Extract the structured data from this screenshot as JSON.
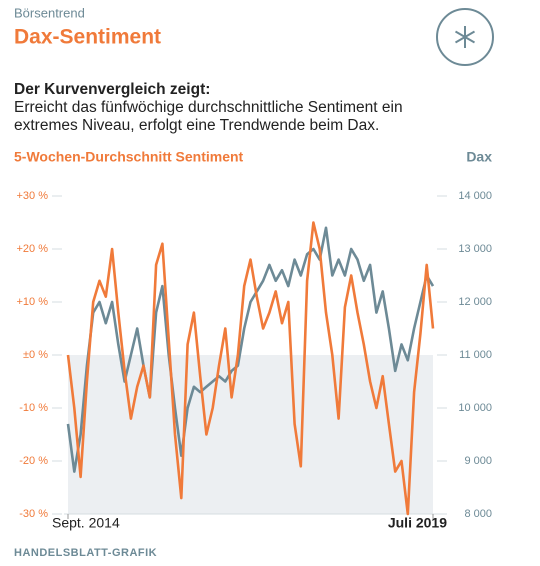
{
  "chart_data": {
    "type": "line",
    "kicker": "Börsentrend",
    "title": "Dax-Sentiment",
    "description_heading": "Der Kurvenvergleich zeigt:",
    "description": [
      "Erreicht das fünfwöchige durchschnittliche Sentiment ein",
      "extremes Niveau, erfolgt eine Trendwende beim Dax."
    ],
    "source": "HANDELSBLATT-GRAFIK",
    "categories": [
      "Sept. 2014",
      null,
      null,
      null,
      null,
      null,
      null,
      null,
      null,
      null,
      null,
      null,
      null,
      null,
      null,
      null,
      null,
      null,
      null,
      null,
      null,
      null,
      null,
      null,
      null,
      null,
      null,
      null,
      null,
      null,
      null,
      null,
      null,
      null,
      null,
      null,
      null,
      null,
      null,
      null,
      null,
      null,
      null,
      null,
      null,
      null,
      null,
      null,
      null,
      null,
      null,
      null,
      null,
      null,
      null,
      null,
      null,
      null,
      "Juli 2019"
    ],
    "series": [
      {
        "name": "5-Wochen-Durchschnitt Sentiment",
        "color": "#f07a3a",
        "values": [
          0,
          -10,
          -23,
          -5,
          10,
          14,
          11,
          20,
          8,
          -3,
          -12,
          -6,
          -2,
          -8,
          17,
          21,
          3,
          -15,
          -27,
          2,
          8,
          -4,
          -15,
          -10,
          -2,
          5,
          -8,
          0,
          13,
          18,
          11,
          5,
          8,
          12,
          6,
          10,
          -13,
          -21,
          14,
          25,
          20,
          8,
          0,
          -12,
          9,
          15,
          8,
          2,
          -5,
          -10,
          -4,
          -13,
          -22,
          -20,
          -30,
          -7,
          4,
          17,
          5
        ]
      },
      {
        "name": "Dax",
        "color": "#6d8a96",
        "axis": "y2",
        "values": [
          9700,
          8800,
          9500,
          10800,
          11800,
          12000,
          11600,
          12000,
          11200,
          10500,
          11000,
          11500,
          10800,
          10200,
          11800,
          12300,
          11000,
          10000,
          9100,
          10000,
          10400,
          10300,
          10400,
          10500,
          10600,
          10500,
          10700,
          10800,
          11500,
          12000,
          12200,
          12400,
          12700,
          12400,
          12600,
          12300,
          12800,
          12500,
          12900,
          13000,
          12800,
          13400,
          12500,
          12800,
          12500,
          13000,
          12800,
          12400,
          12700,
          11800,
          12200,
          11500,
          10700,
          11200,
          10900,
          11500,
          12000,
          12500,
          12300
        ]
      }
    ],
    "ylim": [
      -30,
      30
    ],
    "yticks": [
      {
        "value": 30,
        "label": "+30 %"
      },
      {
        "value": 20,
        "label": "+20 %"
      },
      {
        "value": 10,
        "label": "+10 %"
      },
      {
        "value": 0,
        "label": "±0 %"
      },
      {
        "value": -10,
        "label": "-10 %"
      },
      {
        "value": -20,
        "label": "-20 %"
      },
      {
        "value": -30,
        "label": "-30 %"
      }
    ],
    "y2lim": [
      8000,
      14000
    ],
    "y2ticks": [
      {
        "value": 14000,
        "label": "14 000"
      },
      {
        "value": 13000,
        "label": "13 000"
      },
      {
        "value": 12000,
        "label": "12 000"
      },
      {
        "value": 11000,
        "label": "11 000"
      },
      {
        "value": 10000,
        "label": "10 000"
      },
      {
        "value": 9000,
        "label": "9 000"
      },
      {
        "value": 8000,
        "label": "8 000"
      }
    ]
  }
}
